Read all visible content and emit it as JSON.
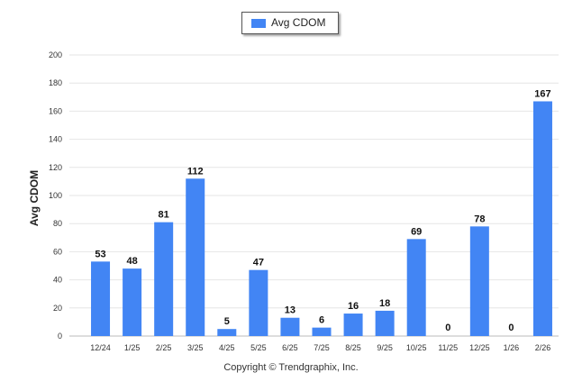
{
  "chart_data": {
    "type": "bar",
    "categories": [
      "12/24",
      "1/25",
      "2/25",
      "3/25",
      "4/25",
      "5/25",
      "6/25",
      "7/25",
      "8/25",
      "9/25",
      "10/25",
      "11/25",
      "12/25",
      "1/26",
      "2/26"
    ],
    "series": [
      {
        "name": "Avg CDOM",
        "values": [
          53,
          48,
          81,
          112,
          5,
          47,
          13,
          6,
          16,
          18,
          69,
          0,
          78,
          0,
          167
        ],
        "color": "#4285f4"
      }
    ],
    "ylabel": "Avg CDOM",
    "xlabel": "",
    "ylim": [
      0,
      200
    ],
    "yticks": [
      0,
      20,
      40,
      60,
      80,
      100,
      120,
      140,
      160,
      180,
      200
    ],
    "grid": true,
    "legend_position": "top-center",
    "data_labels": true
  },
  "footer": {
    "copyright": "Copyright © Trendgraphix, Inc."
  }
}
